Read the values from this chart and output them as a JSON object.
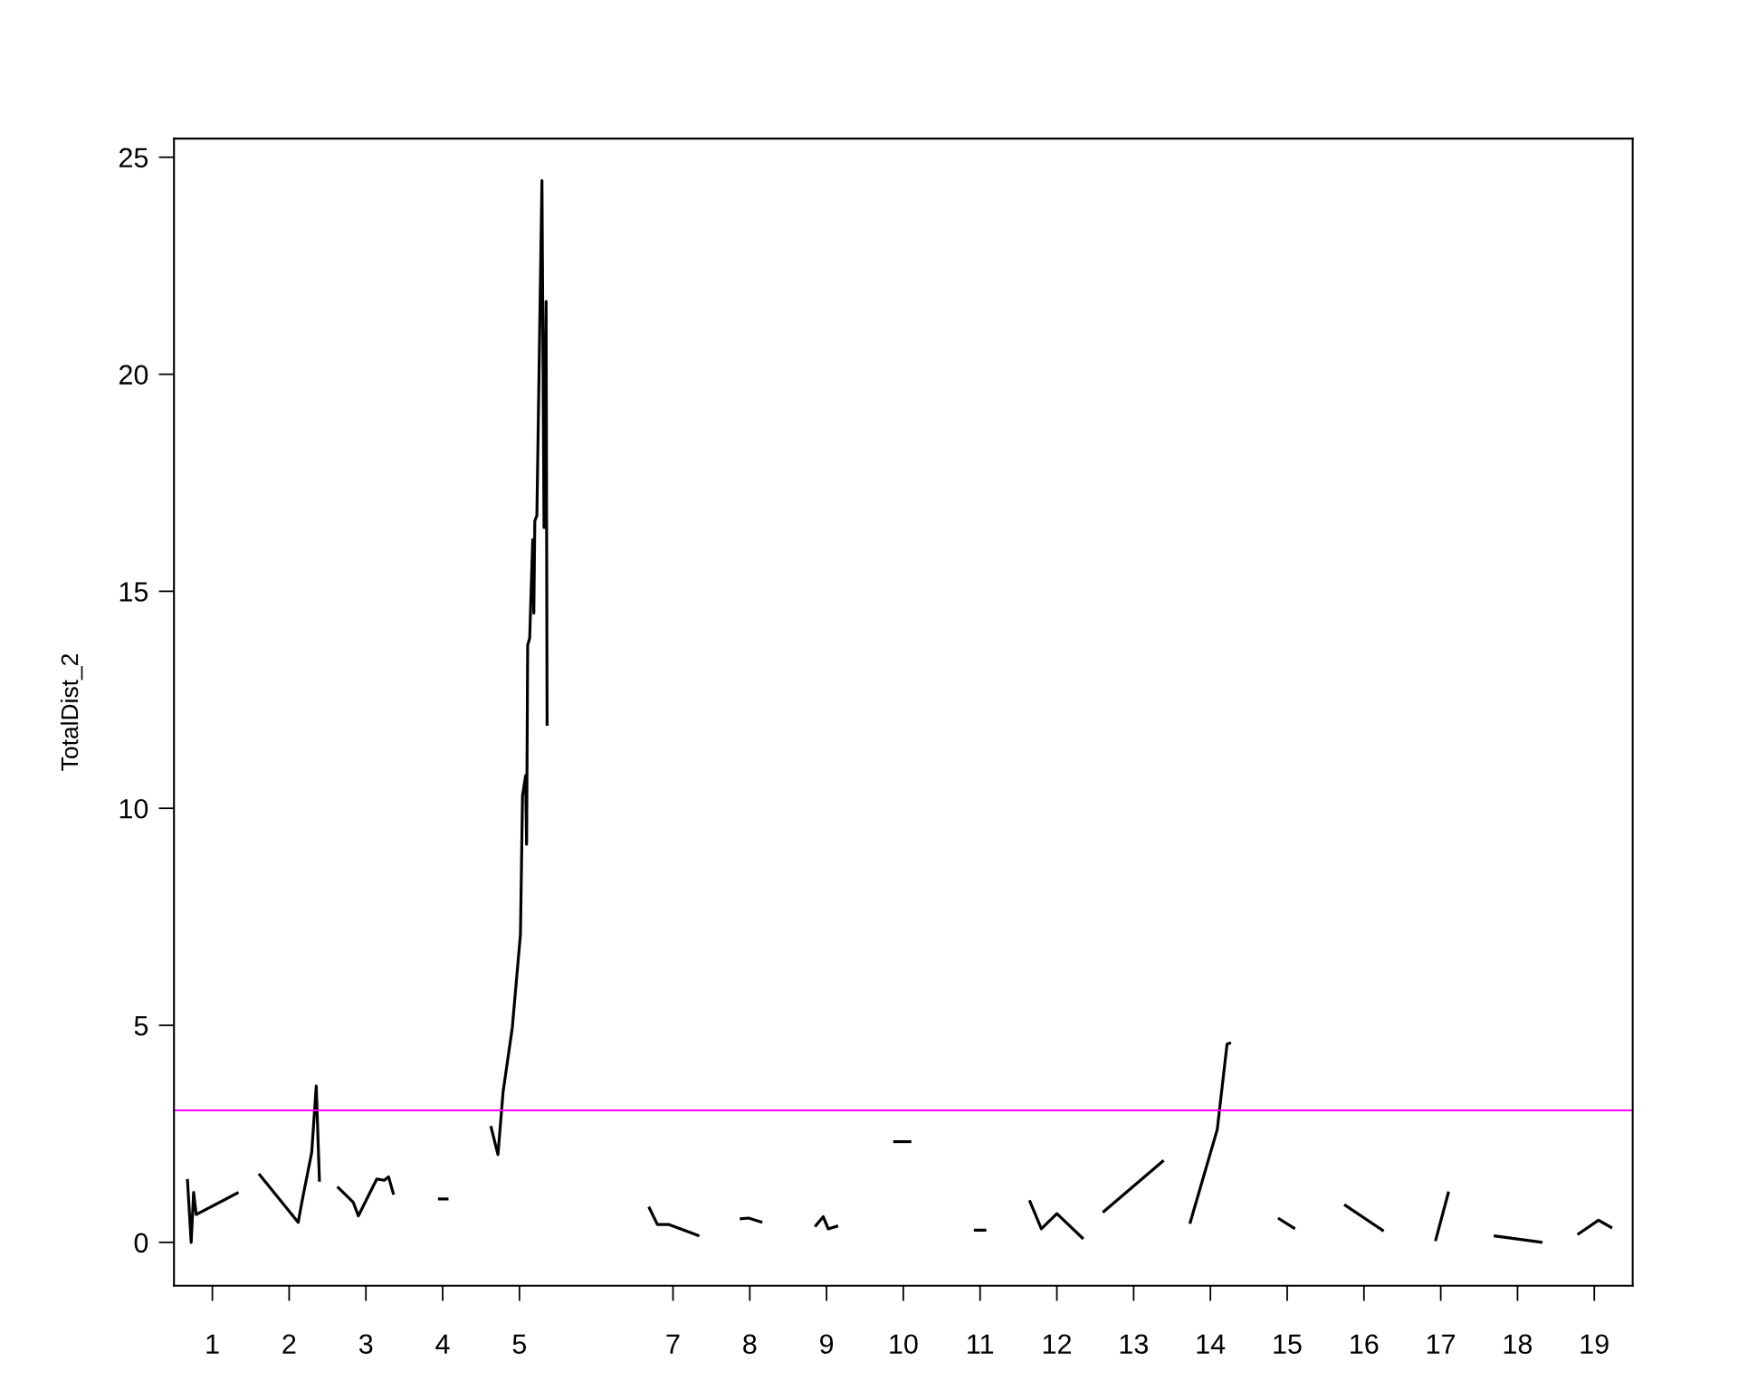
{
  "chart_data": {
    "type": "line",
    "ylabel": "TotalDist_2",
    "xlim": [
      0.5,
      19.5
    ],
    "ylim": [
      -1.0,
      25.43
    ],
    "yticks": [
      0,
      5,
      10,
      15,
      20,
      25
    ],
    "xticks": [
      1,
      2,
      3,
      4,
      5,
      7,
      8,
      9,
      10,
      11,
      12,
      13,
      14,
      15,
      16,
      17,
      18,
      19
    ],
    "grid": false,
    "legend": false,
    "marker": "none",
    "line_style": "solid",
    "ref_lines": [
      {
        "axis": "y",
        "value": 3.04,
        "color": "#ff00ff"
      }
    ],
    "series": [
      {
        "color": "#000000",
        "x": [
          0.675,
          0.724,
          0.756,
          0.789,
          1.341
        ],
        "values": [
          1.46,
          0,
          1.15,
          0.64,
          1.15
        ]
      },
      {
        "color": "#000000",
        "x": [
          1.605,
          2.118,
          2.16,
          2.185,
          2.294,
          2.353,
          2.395
        ],
        "values": [
          1.58,
          0.46,
          0.87,
          1.1,
          2.07,
          3.6,
          1.4
        ]
      },
      {
        "color": "#000000",
        "x": [
          2.628,
          2.836,
          2.902,
          3.142,
          3.24,
          3.295,
          3.361
        ],
        "values": [
          1.28,
          0.92,
          0.61,
          1.46,
          1.43,
          1.51,
          1.1
        ]
      },
      {
        "color": "#000000",
        "x": [
          3.939,
          4.076
        ],
        "values": [
          1.0,
          1.0
        ]
      },
      {
        "color": "#000000",
        "x": [
          4.627,
          4.72,
          4.787,
          4.907,
          5.013,
          5.04,
          5.08,
          5.093,
          5.107,
          5.133,
          5.173,
          5.187,
          5.2,
          5.227,
          5.293,
          5.32,
          5.347,
          5.36
        ],
        "values": [
          2.68,
          2.02,
          3.47,
          4.95,
          7.1,
          10.29,
          10.75,
          9.17,
          13.76,
          13.92,
          16.19,
          14.5,
          16.62,
          16.75,
          24.46,
          16.47,
          21.68,
          11.9
        ]
      },
      {
        "color": "#000000",
        "x": [
          6.684,
          6.797,
          6.949,
          7.342
        ],
        "values": [
          0.82,
          0.41,
          0.41,
          0.15
        ]
      },
      {
        "color": "#000000",
        "x": [
          7.87,
          7.984,
          8.163
        ],
        "values": [
          0.54,
          0.56,
          0.46
        ]
      },
      {
        "color": "#000000",
        "x": [
          8.849,
          8.957,
          9.022,
          9.151
        ],
        "values": [
          0.36,
          0.59,
          0.31,
          0.38
        ]
      },
      {
        "color": "#000000",
        "x": [
          9.868,
          10.105
        ],
        "values": [
          2.32,
          2.32
        ]
      },
      {
        "color": "#000000",
        "x": [
          10.919,
          11.081
        ],
        "values": [
          0.28,
          0.28
        ]
      },
      {
        "color": "#000000",
        "x": [
          11.643,
          11.798,
          12.0,
          12.345
        ],
        "values": [
          0.97,
          0.31,
          0.66,
          0.08
        ]
      },
      {
        "color": "#000000",
        "x": [
          12.598,
          13.392
        ],
        "values": [
          0.69,
          1.89
        ]
      },
      {
        "color": "#000000",
        "x": [
          13.732,
          14.089,
          14.217,
          14.268
        ],
        "values": [
          0.43,
          2.6,
          4.57,
          4.6
        ]
      },
      {
        "color": "#000000",
        "x": [
          14.881,
          15.102
        ],
        "values": [
          0.56,
          0.31
        ]
      },
      {
        "color": "#000000",
        "x": [
          15.743,
          16.257
        ],
        "values": [
          0.87,
          0.26
        ]
      },
      {
        "color": "#000000",
        "x": [
          16.931,
          17.103
        ],
        "values": [
          0.03,
          1.17
        ]
      },
      {
        "color": "#000000",
        "x": [
          17.691,
          18.324
        ],
        "values": [
          0.15,
          0.0
        ]
      },
      {
        "color": "#000000",
        "x": [
          18.781,
          19.055,
          19.233
        ],
        "values": [
          0.18,
          0.51,
          0.33
        ]
      }
    ]
  }
}
